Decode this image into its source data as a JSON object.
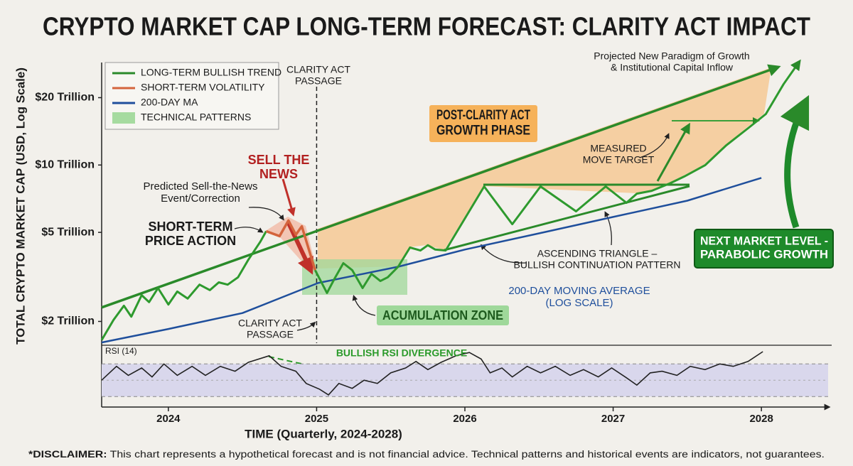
{
  "chart_data": {
    "type": "line",
    "title": "CRYPTO MARKET CAP LONG-TERM FORECAST: CLARITY ACT IMPACT",
    "y_label": "TOTAL CRYPTO MARKET CAP (USD, Log Scale)",
    "x_label": "TIME (Quarterly, 2024-2028)",
    "xlim": [
      2023.55,
      2028.45
    ],
    "xticks": [
      2024,
      2025,
      2026,
      2027,
      2028
    ],
    "ylim": [
      1.6,
      30
    ],
    "log_scale": true,
    "yticks": [
      {
        "value": 2,
        "label": "$2 Trillion"
      },
      {
        "value": 5,
        "label": "$5 Trillion"
      },
      {
        "value": 10,
        "label": "$10 Trillion"
      },
      {
        "value": 20,
        "label": "$20 Trillion"
      }
    ],
    "legend_position": "upper left",
    "series": [
      {
        "name": "LONG-TERM BULLISH TREND",
        "color": "#2a8a2a",
        "x": [
          2023.55,
          2028.1
        ],
        "values": [
          2.31,
          27.2
        ]
      },
      {
        "name": "SHORT-TERM VOLATILITY",
        "color": "#d4643c",
        "x": [
          2024.66,
          2024.75,
          2024.81,
          2024.86,
          2024.9,
          2024.99
        ],
        "values": [
          5.06,
          4.81,
          5.65,
          4.88,
          5.32,
          3.39
        ]
      },
      {
        "name": "200-DAY MA",
        "color": "#1f4f9c",
        "x": [
          2023.55,
          2024.0,
          2024.5,
          2025.01,
          2025.55,
          2026.0,
          2026.5,
          2027.0,
          2027.5,
          2028.0
        ],
        "values": [
          1.61,
          1.85,
          2.18,
          2.97,
          3.51,
          4.19,
          4.95,
          5.86,
          6.93,
          8.76
        ]
      },
      {
        "color": "#2e9a2e",
        "x": [
          2023.55,
          2023.63,
          2023.7,
          2023.75,
          2023.82,
          2023.87,
          2023.93,
          2024.0,
          2024.06,
          2024.13,
          2024.21,
          2024.28,
          2024.34,
          2024.4,
          2024.47,
          2024.54,
          2024.62,
          2024.66,
          2024.8,
          2024.99,
          2025.07,
          2025.12,
          2025.18,
          2025.24,
          2025.31,
          2025.37,
          2025.43,
          2025.48,
          2025.55,
          2025.63,
          2025.7,
          2025.75,
          2025.8,
          2025.87,
          2026.13,
          2026.32,
          2026.51,
          2026.75,
          2026.95,
          2027.09,
          2027.16,
          2027.26,
          2027.38,
          2027.48,
          2027.62,
          2027.76,
          2027.91,
          2028.03,
          2028.15,
          2028.25
        ],
        "values": [
          1.65,
          2.03,
          2.35,
          2.1,
          2.62,
          2.44,
          2.82,
          2.38,
          2.72,
          2.53,
          2.92,
          2.76,
          2.99,
          2.92,
          3.15,
          3.78,
          4.54,
          5.06,
          null,
          3.39,
          2.68,
          3.1,
          3.64,
          3.39,
          2.82,
          3.26,
          3.03,
          3.15,
          3.51,
          4.28,
          4.15,
          4.38,
          4.19,
          4.15,
          8.02,
          5.44,
          8.02,
          6.21,
          8.02,
          6.78,
          7.45,
          7.67,
          8.26,
          8.89,
          9.98,
          12.2,
          14.6,
          16.9,
          23.0,
          28.6
        ]
      }
    ],
    "legend_patch": {
      "name": "TECHNICAL PATTERNS",
      "color": "#a6dba0"
    },
    "event_x": 2025,
    "annotations": [
      {
        "lines": [
          "Projected New Paradigm of Growth",
          "& Institutional Capital Inflow"
        ]
      },
      {
        "lines": [
          "CLARITY ACT",
          "PASSAGE"
        ]
      },
      {
        "lines": [
          "POST-CLARITY ACT",
          "GROWTH PHASE"
        ]
      },
      {
        "lines": [
          "MEASURED",
          "MOVE TARGET"
        ]
      },
      {
        "lines": [
          "SELL THE",
          "NEWS"
        ]
      },
      {
        "lines": [
          "Predicted Sell-the-News",
          "Event/Correction"
        ]
      },
      {
        "lines": [
          "SHORT-TERM",
          "PRICE ACTION"
        ]
      },
      {
        "lines": [
          "ASCENDING TRIANGLE –",
          "BULLISH CONTINUATION PATTERN"
        ]
      },
      {
        "lines": [
          "200-DAY MOVING AVERAGE",
          "(LOG SCALE)"
        ]
      },
      {
        "lines": [
          "ACUMULATION ZONE"
        ]
      },
      {
        "lines": [
          "CLARITY ACT",
          "PASSAGE"
        ]
      },
      {
        "lines": [
          "NEXT MARKET LEVEL -",
          "PARABOLIC GROWTH"
        ]
      },
      {
        "lines": [
          "BULLISH RSI DIVERGENCE"
        ]
      }
    ],
    "rsi": {
      "label": "RSI (14)",
      "color": "#222222",
      "ylim": [
        18,
        92
      ],
      "band": [
        30,
        70
      ],
      "x": [
        2023.55,
        2023.65,
        2023.73,
        2023.82,
        2023.89,
        2023.97,
        2024.06,
        2024.16,
        2024.25,
        2024.35,
        2024.45,
        2024.54,
        2024.68,
        2024.76,
        2024.86,
        2024.93,
        2025.02,
        2025.08,
        2025.15,
        2025.24,
        2025.32,
        2025.41,
        2025.5,
        2025.6,
        2025.67,
        2025.75,
        2025.84,
        2025.94,
        2026.03,
        2026.11,
        2026.17,
        2026.25,
        2026.32,
        2026.42,
        2026.51,
        2026.61,
        2026.71,
        2026.8,
        2026.9,
        2026.99,
        2027.09,
        2027.16,
        2027.25,
        2027.33,
        2027.43,
        2027.52,
        2027.62,
        2027.72,
        2027.81,
        2027.91,
        2028.01
      ],
      "values": [
        50,
        67,
        56,
        65,
        54,
        70,
        56,
        67,
        56,
        67,
        61,
        72,
        80,
        67,
        61,
        46,
        39,
        32,
        46,
        40,
        50,
        46,
        59,
        65,
        73,
        63,
        72,
        80,
        84,
        76,
        59,
        65,
        54,
        67,
        59,
        67,
        56,
        63,
        54,
        65,
        53,
        44,
        59,
        61,
        56,
        67,
        63,
        70,
        67,
        73,
        85
      ]
    },
    "disclaimer": {
      "lead": "*DISCLAIMER:",
      "text": " This chart represents a hypothetical forecast and is not financial advice. Technical patterns and historical events are indicators, not guarantees."
    }
  }
}
